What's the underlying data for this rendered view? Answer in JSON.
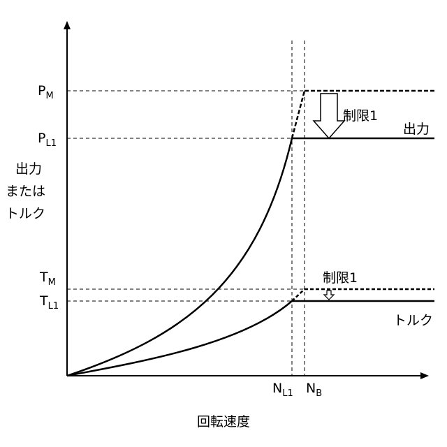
{
  "ylabel_lines": [
    "出力",
    "または",
    "トルク"
  ],
  "xlabel": "回転速度",
  "y_ticks": {
    "pm": {
      "main": "P",
      "sub": "M"
    },
    "pl1": {
      "main": "P",
      "sub": "L1"
    },
    "tm": {
      "main": "T",
      "sub": "M"
    },
    "tl1": {
      "main": "T",
      "sub": "L1"
    }
  },
  "x_ticks": {
    "nl1": {
      "main": "N",
      "sub": "L1"
    },
    "nb": {
      "main": "N",
      "sub": "B"
    }
  },
  "labels": {
    "power_limit": "制限1",
    "power_curve": "出力",
    "torque_limit": "制限1",
    "torque_curve": "トルク"
  }
}
